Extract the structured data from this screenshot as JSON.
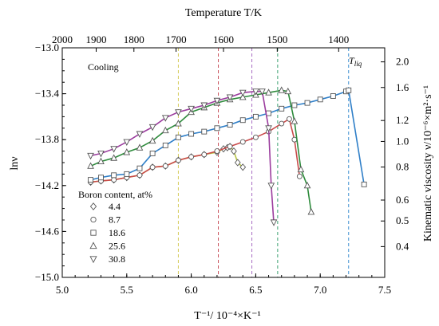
{
  "chart_data": {
    "type": "line",
    "x_axis": {
      "label": "T⁻¹/ 10⁻⁴×K⁻¹",
      "range": [
        5.0,
        7.5
      ],
      "ticks": [
        "5.0",
        "5.5",
        "6.0",
        "6.5",
        "7.0",
        "7.5"
      ]
    },
    "y_axis": {
      "label": "lnν",
      "range": [
        -15.0,
        -13.0
      ],
      "ticks": [
        "−13.0",
        "−13.4",
        "−13.8",
        "−14.2",
        "−14.6",
        "−15.0"
      ]
    },
    "top_axis": {
      "label": "Temperature T/K",
      "ticks": [
        {
          "label": "2000",
          "T": 2000
        },
        {
          "label": "1900",
          "T": 1900
        },
        {
          "label": "1800",
          "T": 1800
        },
        {
          "label": "1700",
          "T": 1700
        },
        {
          "label": "1600",
          "T": 1600
        },
        {
          "label": "1500",
          "T": 1500
        },
        {
          "label": "1400",
          "T": 1400
        }
      ]
    },
    "right_axis": {
      "label": "Kinematic viscosity ν/10⁻⁶×m²·s⁻¹",
      "ticks": [
        {
          "label": "2.0",
          "v": 2.0
        },
        {
          "label": "1.6",
          "v": 1.6
        },
        {
          "label": "1.2",
          "v": 1.2
        },
        {
          "label": "1.0",
          "v": 1.0
        },
        {
          "label": "0.8",
          "v": 0.8
        },
        {
          "label": "0.6",
          "v": 0.6
        },
        {
          "label": "0.5",
          "v": 0.5
        },
        {
          "label": "0.4",
          "v": 0.4
        }
      ]
    },
    "annotations": {
      "mode_label": "Cooling",
      "tliq_label": "T",
      "tliq_sub": "liq"
    },
    "legend": {
      "title": "Boron content, at%",
      "placement": "bottom-left"
    },
    "liquidus_lines": [
      {
        "series": "4.4",
        "x": 5.9,
        "color": "#d6cc5a"
      },
      {
        "series": "8.7",
        "x": 6.21,
        "color": "#c9505a"
      },
      {
        "series": "30.8",
        "x": 6.47,
        "color": "#a86cc2"
      },
      {
        "series": "25.6",
        "x": 6.67,
        "color": "#3aa070"
      },
      {
        "series": "18.6",
        "x": 7.22,
        "color": "#3c8fd0"
      }
    ],
    "series": [
      {
        "name": "4.4",
        "marker": "diamond",
        "color": "#b5c445",
        "x": [
          5.22,
          5.3,
          5.4,
          5.5,
          5.6,
          5.7,
          5.8,
          5.9,
          6.0,
          6.1,
          6.2,
          6.25,
          6.28,
          6.3,
          6.33,
          6.36,
          6.4
        ],
        "y": [
          -14.17,
          -14.16,
          -14.15,
          -14.13,
          -14.11,
          -14.04,
          -14.03,
          -13.98,
          -13.95,
          -13.93,
          -13.91,
          -13.88,
          -13.87,
          -13.86,
          -13.9,
          -14.0,
          -14.04
        ]
      },
      {
        "name": "8.7",
        "marker": "circle",
        "color": "#c94a4a",
        "x": [
          5.22,
          5.3,
          5.4,
          5.5,
          5.6,
          5.7,
          5.8,
          5.9,
          6.0,
          6.1,
          6.2,
          6.3,
          6.4,
          6.5,
          6.6,
          6.7,
          6.76,
          6.8,
          6.84
        ],
        "y": [
          -14.17,
          -14.16,
          -14.15,
          -14.13,
          -14.11,
          -14.04,
          -14.03,
          -13.98,
          -13.95,
          -13.93,
          -13.9,
          -13.86,
          -13.82,
          -13.78,
          -13.73,
          -13.66,
          -13.62,
          -13.8,
          -14.12
        ]
      },
      {
        "name": "18.6",
        "marker": "square",
        "color": "#2f7fc8",
        "x": [
          5.22,
          5.3,
          5.4,
          5.5,
          5.6,
          5.7,
          5.8,
          5.9,
          6.0,
          6.1,
          6.2,
          6.3,
          6.4,
          6.5,
          6.6,
          6.7,
          6.8,
          6.9,
          7.0,
          7.1,
          7.2,
          7.22,
          7.34
        ],
        "y": [
          -14.15,
          -14.13,
          -14.11,
          -14.1,
          -14.05,
          -13.92,
          -13.85,
          -13.78,
          -13.75,
          -13.73,
          -13.7,
          -13.67,
          -13.63,
          -13.6,
          -13.57,
          -13.53,
          -13.5,
          -13.48,
          -13.45,
          -13.42,
          -13.38,
          -13.37,
          -14.19
        ]
      },
      {
        "name": "25.6",
        "marker": "triangle-up",
        "color": "#2e8b3c",
        "x": [
          5.22,
          5.3,
          5.4,
          5.5,
          5.6,
          5.7,
          5.8,
          5.9,
          6.0,
          6.1,
          6.2,
          6.3,
          6.4,
          6.5,
          6.6,
          6.7,
          6.75,
          6.8,
          6.85,
          6.9,
          6.93
        ],
        "y": [
          -14.03,
          -13.99,
          -13.96,
          -13.91,
          -13.87,
          -13.81,
          -13.72,
          -13.66,
          -13.56,
          -13.52,
          -13.48,
          -13.45,
          -13.43,
          -13.41,
          -13.39,
          -13.37,
          -13.38,
          -13.64,
          -14.06,
          -14.2,
          -14.43
        ]
      },
      {
        "name": "30.8",
        "marker": "triangle-down",
        "color": "#9b3d9e",
        "x": [
          5.22,
          5.3,
          5.4,
          5.5,
          5.6,
          5.7,
          5.8,
          5.9,
          6.0,
          6.1,
          6.2,
          6.3,
          6.4,
          6.5,
          6.55,
          6.6,
          6.62,
          6.64
        ],
        "y": [
          -13.94,
          -13.92,
          -13.88,
          -13.82,
          -13.75,
          -13.69,
          -13.61,
          -13.56,
          -13.53,
          -13.5,
          -13.46,
          -13.43,
          -13.39,
          -13.38,
          -13.38,
          -13.7,
          -14.2,
          -14.52
        ]
      }
    ]
  }
}
